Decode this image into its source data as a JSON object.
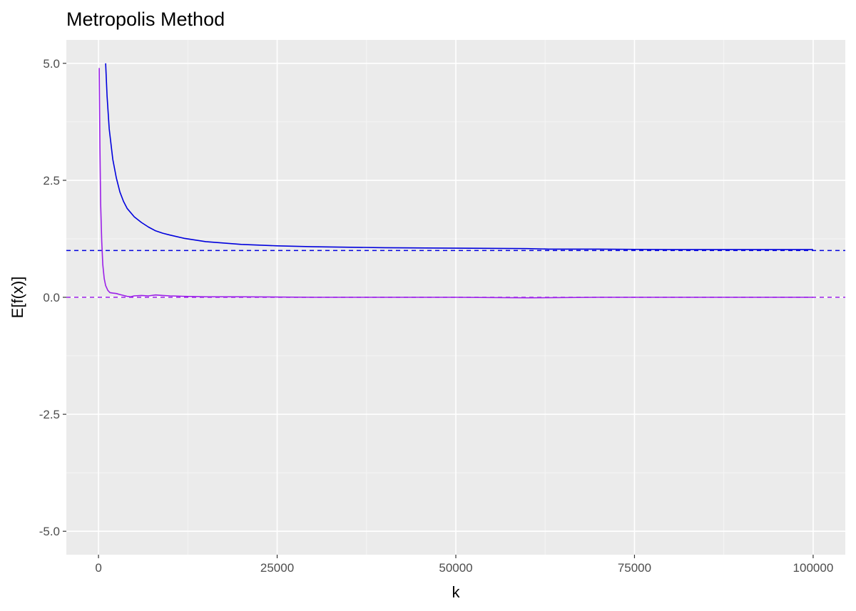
{
  "chart_data": {
    "type": "line",
    "title": "Metropolis Method",
    "xlabel": "k",
    "ylabel": "E[f(x)]",
    "xlim": [
      -4500,
      104500
    ],
    "ylim": [
      -5.5,
      5.5
    ],
    "x_ticks": [
      0,
      25000,
      50000,
      75000,
      100000
    ],
    "x_tick_labels": [
      "0",
      "25000",
      "50000",
      "75000",
      "100000"
    ],
    "y_ticks": [
      -5.0,
      -2.5,
      0.0,
      2.5,
      5.0
    ],
    "y_tick_labels": [
      "-5.0",
      "-2.5",
      "0.0",
      "2.5",
      "5.0"
    ],
    "grid": true,
    "legend": "none",
    "colors": {
      "panel_background": "#ebebeb",
      "grid_major": "#ffffff",
      "grid_minor": "#f5f5f5",
      "tick": "#333333"
    },
    "series": [
      {
        "color": "#0000dd",
        "x": [
          1000,
          1200,
          1500,
          2000,
          2500,
          3000,
          3500,
          4000,
          5000,
          6000,
          7000,
          8000,
          9000,
          10000,
          12000,
          15000,
          20000,
          25000,
          30000,
          40000,
          50000,
          60000,
          63000,
          70000,
          80000,
          90000,
          100000
        ],
        "values": [
          5.0,
          4.3,
          3.6,
          2.95,
          2.55,
          2.25,
          2.05,
          1.9,
          1.72,
          1.6,
          1.5,
          1.42,
          1.37,
          1.33,
          1.26,
          1.19,
          1.13,
          1.1,
          1.08,
          1.06,
          1.05,
          1.04,
          1.03,
          1.03,
          1.02,
          1.02,
          1.02
        ]
      },
      {
        "color": "#9b1fe8",
        "x": [
          100,
          200,
          300,
          450,
          600,
          800,
          1000,
          1300,
          1600,
          2000,
          2500,
          3000,
          3500,
          4000,
          4500,
          5000,
          6000,
          7000,
          8000,
          9000,
          10000,
          12000,
          15000,
          20000,
          30000,
          40000,
          50000,
          60000,
          70000,
          80000,
          90000,
          100000
        ],
        "values": [
          4.9,
          3.2,
          2.0,
          1.2,
          0.7,
          0.4,
          0.25,
          0.15,
          0.1,
          0.09,
          0.08,
          0.06,
          0.04,
          0.02,
          0.01,
          0.03,
          0.04,
          0.03,
          0.05,
          0.04,
          0.03,
          0.02,
          0.01,
          0.01,
          0.0,
          0.0,
          0.0,
          -0.01,
          0.0,
          0.0,
          0.0,
          0.0
        ]
      }
    ],
    "reference_lines": [
      {
        "y": 1.0,
        "color": "#0000dd",
        "style": "dashed"
      },
      {
        "y": 0.0,
        "color": "#9b1fe8",
        "style": "dashed"
      }
    ]
  }
}
